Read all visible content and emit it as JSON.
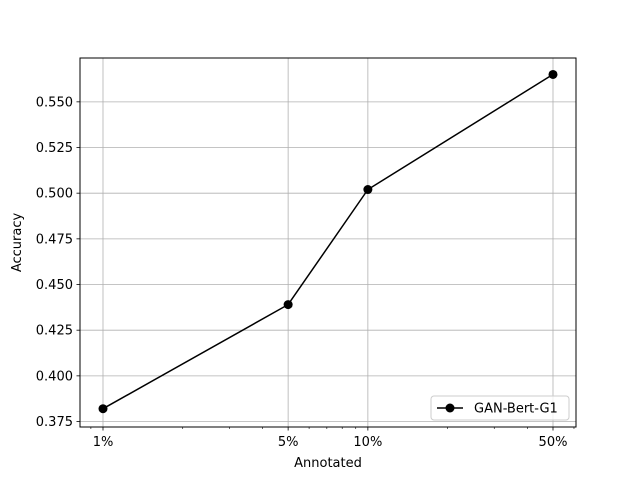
{
  "chart_data": {
    "type": "line",
    "xscale": "log",
    "x": [
      1,
      5,
      10,
      50
    ],
    "xtick_labels": [
      "1%",
      "5%",
      "10%",
      "50%"
    ],
    "xlabel": "Annotated",
    "ylabel": "Accuracy",
    "ylim": [
      0.372,
      0.574
    ],
    "yticks": [
      0.375,
      0.4,
      0.425,
      0.45,
      0.475,
      0.5,
      0.525,
      0.55
    ],
    "ytick_labels": [
      "0.375",
      "0.400",
      "0.425",
      "0.450",
      "0.475",
      "0.500",
      "0.525",
      "0.550"
    ],
    "grid": true,
    "legend_position": "lower-right",
    "series": [
      {
        "name": "GAN-Bert-G1",
        "color": "#000000",
        "marker": "circle",
        "values": [
          0.382,
          0.439,
          0.502,
          0.565
        ]
      }
    ]
  }
}
